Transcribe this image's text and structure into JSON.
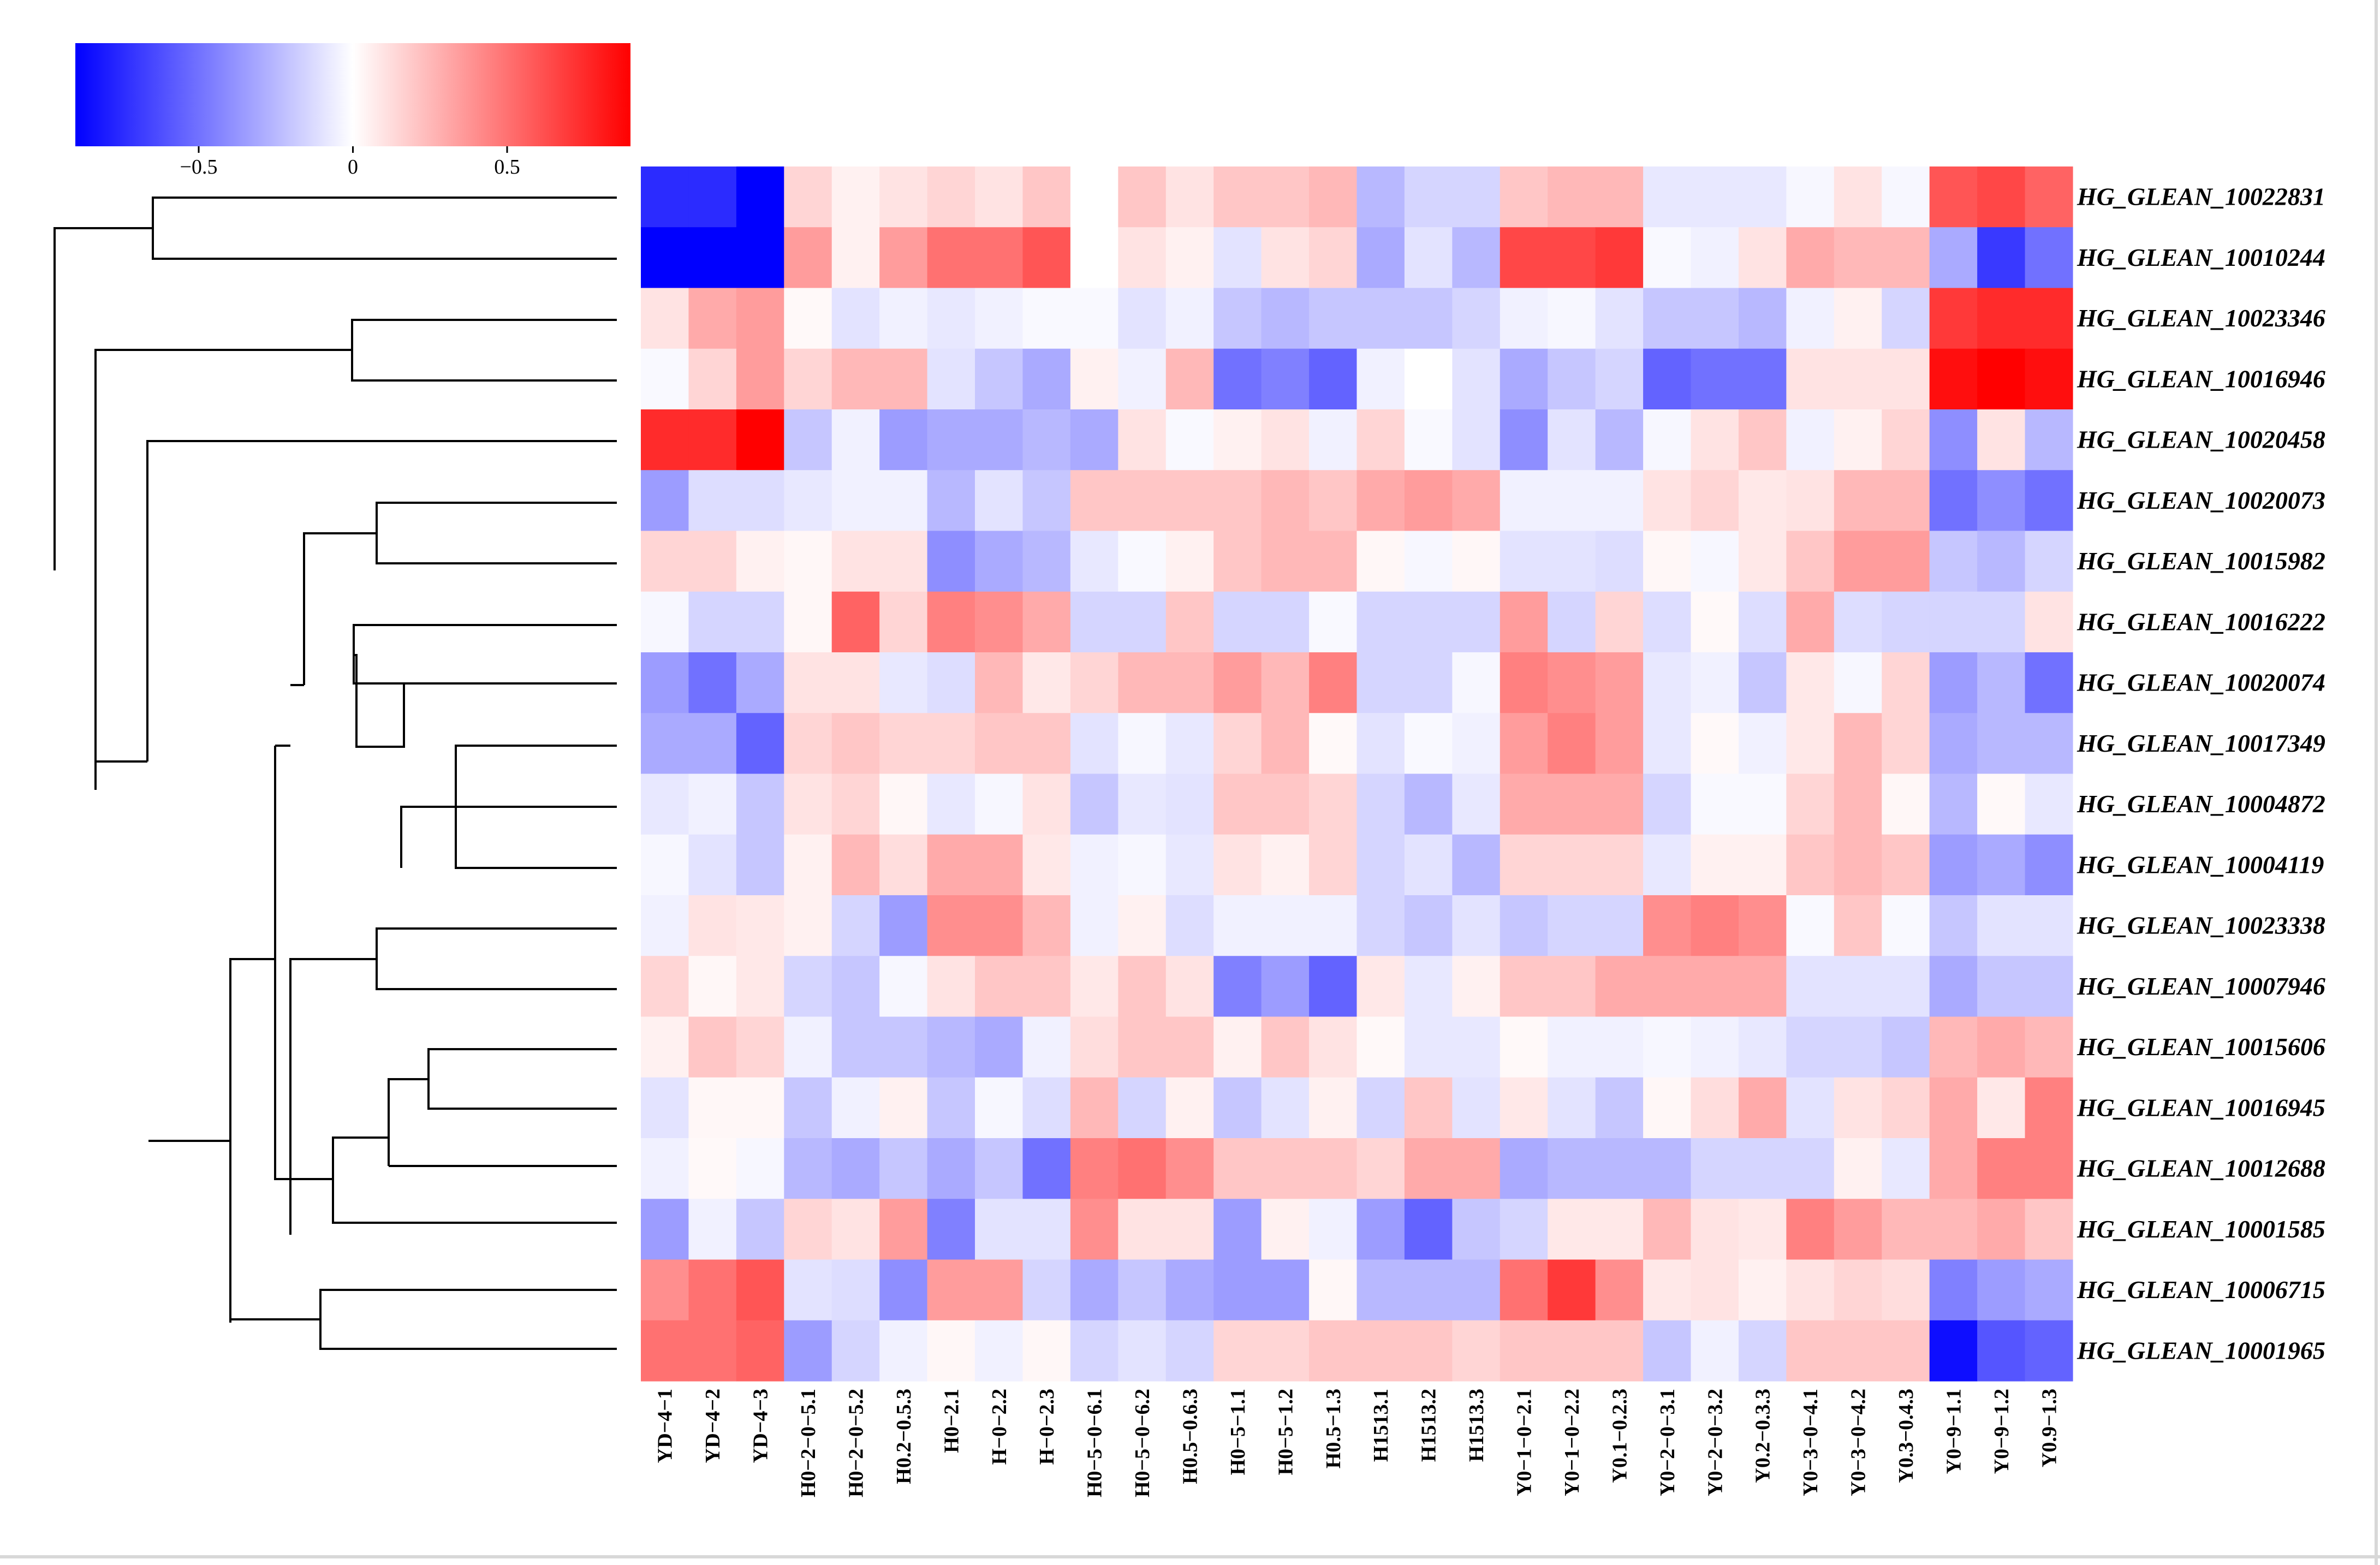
{
  "chart_data": {
    "type": "heatmap",
    "title": "",
    "colorbar": {
      "ticks": [
        -0.5,
        0,
        0.5
      ],
      "tick_labels": [
        "−0.5",
        "0",
        "0.5"
      ],
      "range": [
        -0.9,
        0.9
      ],
      "colors": {
        "low": "#0000ff",
        "mid": "#ffffff",
        "high": "#ff0000"
      }
    },
    "columns": [
      "YD−4−1",
      "YD−4−2",
      "YD−4−3",
      "H0−2−0−5.1",
      "H0−2−0−5.2",
      "H0.2−0.5.3",
      "H0−2.1",
      "H−0−2.2",
      "H−0−2.3",
      "H0−5−0−6.1",
      "H0−5−0−6.2",
      "H0.5−0.6.3",
      "H0−5−1.1",
      "H0−5−1.2",
      "H0.5−1.3",
      "H1513.1",
      "H1513.2",
      "H1513.3",
      "Y0−1−0−2.1",
      "Y0−1−0−2.2",
      "Y0.1−0.2.3",
      "Y0−2−0−3.1",
      "Y0−2−0−3.2",
      "Y0.2−0.3.3",
      "Y0−3−0−4.1",
      "Y0−3−0−4.2",
      "Y0.3−0.4.3",
      "Y0−9−1.1",
      "Y0−9−1.2",
      "Y0.9−1.3"
    ],
    "rows": [
      "HG_GLEAN_10022831",
      "HG_GLEAN_10010244",
      "HG_GLEAN_10023346",
      "HG_GLEAN_10016946",
      "HG_GLEAN_10020458",
      "HG_GLEAN_10020073",
      "HG_GLEAN_10015982",
      "HG_GLEAN_10016222",
      "HG_GLEAN_10020074",
      "HG_GLEAN_10017349",
      "HG_GLEAN_10004872",
      "HG_GLEAN_10004119",
      "HG_GLEAN_10023338",
      "HG_GLEAN_10007946",
      "HG_GLEAN_10015606",
      "HG_GLEAN_10016945",
      "HG_GLEAN_10012688",
      "HG_GLEAN_10001585",
      "HG_GLEAN_10006715",
      "HG_GLEAN_10001965"
    ],
    "values": [
      [
        -0.75,
        -0.75,
        -0.9,
        0.15,
        0.05,
        0.1,
        0.15,
        0.1,
        0.2,
        0.0,
        0.2,
        0.1,
        0.2,
        0.2,
        0.25,
        -0.25,
        -0.15,
        -0.15,
        0.2,
        0.25,
        0.25,
        -0.08,
        -0.08,
        -0.08,
        -0.03,
        0.1,
        -0.03,
        0.6,
        0.65,
        0.55
      ],
      [
        -0.9,
        -0.9,
        -0.9,
        0.35,
        0.05,
        0.35,
        0.5,
        0.5,
        0.6,
        0.0,
        0.1,
        0.05,
        -0.1,
        0.1,
        0.15,
        -0.3,
        -0.1,
        -0.25,
        0.65,
        0.65,
        0.7,
        -0.02,
        -0.05,
        0.1,
        0.3,
        0.25,
        0.25,
        -0.3,
        -0.7,
        -0.5
      ],
      [
        0.1,
        0.3,
        0.35,
        0.02,
        -0.1,
        -0.05,
        -0.08,
        -0.05,
        -0.02,
        -0.02,
        -0.1,
        -0.05,
        -0.2,
        -0.25,
        -0.2,
        -0.2,
        -0.2,
        -0.15,
        -0.05,
        -0.03,
        -0.1,
        -0.2,
        -0.2,
        -0.25,
        -0.05,
        0.05,
        -0.15,
        0.7,
        0.75,
        0.75
      ],
      [
        -0.02,
        0.15,
        0.35,
        0.15,
        0.25,
        0.25,
        -0.1,
        -0.2,
        -0.3,
        0.05,
        -0.05,
        0.25,
        -0.5,
        -0.45,
        -0.55,
        -0.05,
        0.0,
        -0.1,
        -0.3,
        -0.2,
        -0.15,
        -0.55,
        -0.5,
        -0.5,
        0.1,
        0.1,
        0.1,
        0.85,
        0.95,
        0.85
      ],
      [
        0.75,
        0.75,
        0.9,
        -0.2,
        -0.05,
        -0.35,
        -0.3,
        -0.3,
        -0.25,
        -0.3,
        0.1,
        -0.02,
        0.05,
        0.1,
        -0.05,
        0.15,
        -0.02,
        -0.1,
        -0.4,
        -0.1,
        -0.25,
        -0.03,
        0.1,
        0.2,
        -0.05,
        0.05,
        0.15,
        -0.4,
        0.1,
        -0.25
      ],
      [
        -0.35,
        -0.12,
        -0.12,
        -0.08,
        -0.05,
        -0.05,
        -0.25,
        -0.1,
        -0.2,
        0.2,
        0.2,
        0.2,
        0.2,
        0.25,
        0.2,
        0.3,
        0.35,
        0.3,
        -0.05,
        -0.05,
        -0.05,
        0.1,
        0.15,
        0.08,
        0.1,
        0.25,
        0.25,
        -0.5,
        -0.4,
        -0.5
      ],
      [
        0.15,
        0.15,
        0.05,
        0.03,
        0.1,
        0.1,
        -0.4,
        -0.3,
        -0.25,
        -0.08,
        -0.02,
        0.05,
        0.2,
        0.25,
        0.25,
        0.03,
        -0.03,
        0.03,
        -0.1,
        -0.1,
        -0.12,
        0.03,
        -0.03,
        0.08,
        0.2,
        0.35,
        0.35,
        -0.2,
        -0.25,
        -0.15
      ],
      [
        -0.03,
        -0.15,
        -0.15,
        0.03,
        0.55,
        0.15,
        0.45,
        0.4,
        0.3,
        -0.15,
        -0.15,
        0.2,
        -0.15,
        -0.15,
        -0.02,
        -0.15,
        -0.15,
        -0.15,
        0.35,
        -0.15,
        0.15,
        -0.12,
        0.02,
        -0.12,
        0.3,
        -0.12,
        -0.15,
        -0.15,
        -0.15,
        0.1
      ],
      [
        -0.35,
        -0.5,
        -0.3,
        0.1,
        0.1,
        -0.08,
        -0.12,
        0.25,
        0.08,
        0.15,
        0.25,
        0.25,
        0.35,
        0.25,
        0.45,
        -0.15,
        -0.15,
        -0.03,
        0.45,
        0.4,
        0.35,
        -0.08,
        -0.05,
        -0.2,
        0.08,
        -0.03,
        0.15,
        -0.35,
        -0.25,
        -0.5
      ],
      [
        -0.3,
        -0.3,
        -0.55,
        0.15,
        0.2,
        0.15,
        0.15,
        0.2,
        0.2,
        -0.1,
        -0.03,
        -0.08,
        0.15,
        0.25,
        0.02,
        -0.1,
        -0.02,
        -0.05,
        0.35,
        0.45,
        0.35,
        -0.08,
        0.02,
        -0.05,
        0.08,
        0.25,
        0.15,
        -0.3,
        -0.25,
        -0.25
      ],
      [
        -0.08,
        -0.05,
        -0.2,
        0.1,
        0.15,
        0.03,
        -0.08,
        -0.03,
        0.1,
        -0.2,
        -0.08,
        -0.1,
        0.2,
        0.2,
        0.15,
        -0.15,
        -0.25,
        -0.08,
        0.3,
        0.3,
        0.3,
        -0.15,
        -0.02,
        -0.02,
        0.15,
        0.25,
        0.03,
        -0.25,
        0.02,
        -0.08
      ],
      [
        -0.03,
        -0.1,
        -0.2,
        0.05,
        0.25,
        0.12,
        0.3,
        0.3,
        0.08,
        -0.05,
        -0.03,
        -0.08,
        0.1,
        0.05,
        0.15,
        -0.15,
        -0.1,
        -0.25,
        0.15,
        0.15,
        0.15,
        -0.08,
        0.05,
        0.05,
        0.2,
        0.25,
        0.2,
        -0.35,
        -0.3,
        -0.4
      ],
      [
        -0.05,
        0.1,
        0.08,
        0.05,
        -0.15,
        -0.35,
        0.4,
        0.4,
        0.25,
        -0.05,
        0.05,
        -0.12,
        -0.05,
        -0.05,
        -0.05,
        -0.15,
        -0.2,
        -0.1,
        -0.2,
        -0.15,
        -0.15,
        0.4,
        0.45,
        0.4,
        -0.02,
        0.2,
        -0.02,
        -0.2,
        -0.1,
        -0.1
      ],
      [
        0.15,
        0.03,
        0.08,
        -0.15,
        -0.2,
        -0.03,
        0.1,
        0.2,
        0.2,
        0.08,
        0.2,
        0.1,
        -0.45,
        -0.35,
        -0.55,
        0.08,
        -0.08,
        0.05,
        0.2,
        0.2,
        0.3,
        0.3,
        0.3,
        0.3,
        -0.1,
        -0.1,
        -0.1,
        -0.3,
        -0.2,
        -0.2
      ],
      [
        0.05,
        0.2,
        0.15,
        -0.05,
        -0.2,
        -0.2,
        -0.25,
        -0.3,
        -0.05,
        0.12,
        0.2,
        0.2,
        0.05,
        0.2,
        0.1,
        0.02,
        -0.08,
        -0.08,
        0.02,
        -0.05,
        -0.05,
        -0.03,
        -0.05,
        -0.08,
        -0.15,
        -0.15,
        -0.2,
        0.25,
        0.3,
        0.25
      ],
      [
        -0.1,
        0.03,
        0.03,
        -0.2,
        -0.05,
        0.05,
        -0.2,
        -0.03,
        -0.12,
        0.25,
        -0.15,
        0.05,
        -0.2,
        -0.1,
        0.05,
        -0.15,
        0.2,
        -0.1,
        0.08,
        -0.1,
        -0.2,
        0.03,
        0.12,
        0.3,
        -0.1,
        0.1,
        0.15,
        0.3,
        0.08,
        0.45
      ],
      [
        -0.05,
        0.02,
        -0.03,
        -0.25,
        -0.3,
        -0.2,
        -0.3,
        -0.2,
        -0.5,
        0.45,
        0.5,
        0.4,
        0.2,
        0.2,
        0.2,
        0.15,
        0.3,
        0.3,
        -0.3,
        -0.25,
        -0.25,
        -0.25,
        -0.15,
        -0.15,
        -0.15,
        0.05,
        -0.08,
        0.3,
        0.45,
        0.45
      ],
      [
        -0.35,
        -0.05,
        -0.2,
        0.15,
        0.1,
        0.35,
        -0.45,
        -0.1,
        -0.1,
        0.4,
        0.1,
        0.1,
        -0.35,
        0.05,
        -0.05,
        -0.35,
        -0.55,
        -0.2,
        -0.15,
        0.08,
        0.08,
        0.25,
        0.1,
        0.08,
        0.45,
        0.35,
        0.25,
        0.25,
        0.3,
        0.2
      ],
      [
        0.4,
        0.5,
        0.6,
        -0.1,
        -0.12,
        -0.4,
        0.35,
        0.35,
        -0.15,
        -0.3,
        -0.2,
        -0.3,
        -0.35,
        -0.35,
        0.03,
        -0.25,
        -0.25,
        -0.25,
        0.5,
        0.7,
        0.4,
        0.08,
        0.1,
        0.05,
        0.1,
        0.15,
        0.12,
        -0.45,
        -0.35,
        -0.3
      ],
      [
        0.5,
        0.5,
        0.55,
        -0.35,
        -0.15,
        -0.05,
        0.03,
        -0.05,
        0.03,
        -0.15,
        -0.1,
        -0.15,
        0.15,
        0.15,
        0.2,
        0.2,
        0.2,
        0.15,
        0.2,
        0.2,
        0.2,
        -0.2,
        -0.05,
        -0.15,
        0.2,
        0.2,
        0.2,
        -0.85,
        -0.6,
        -0.55
      ]
    ],
    "dendrogram": "hierarchical clustering of rows (left)"
  }
}
